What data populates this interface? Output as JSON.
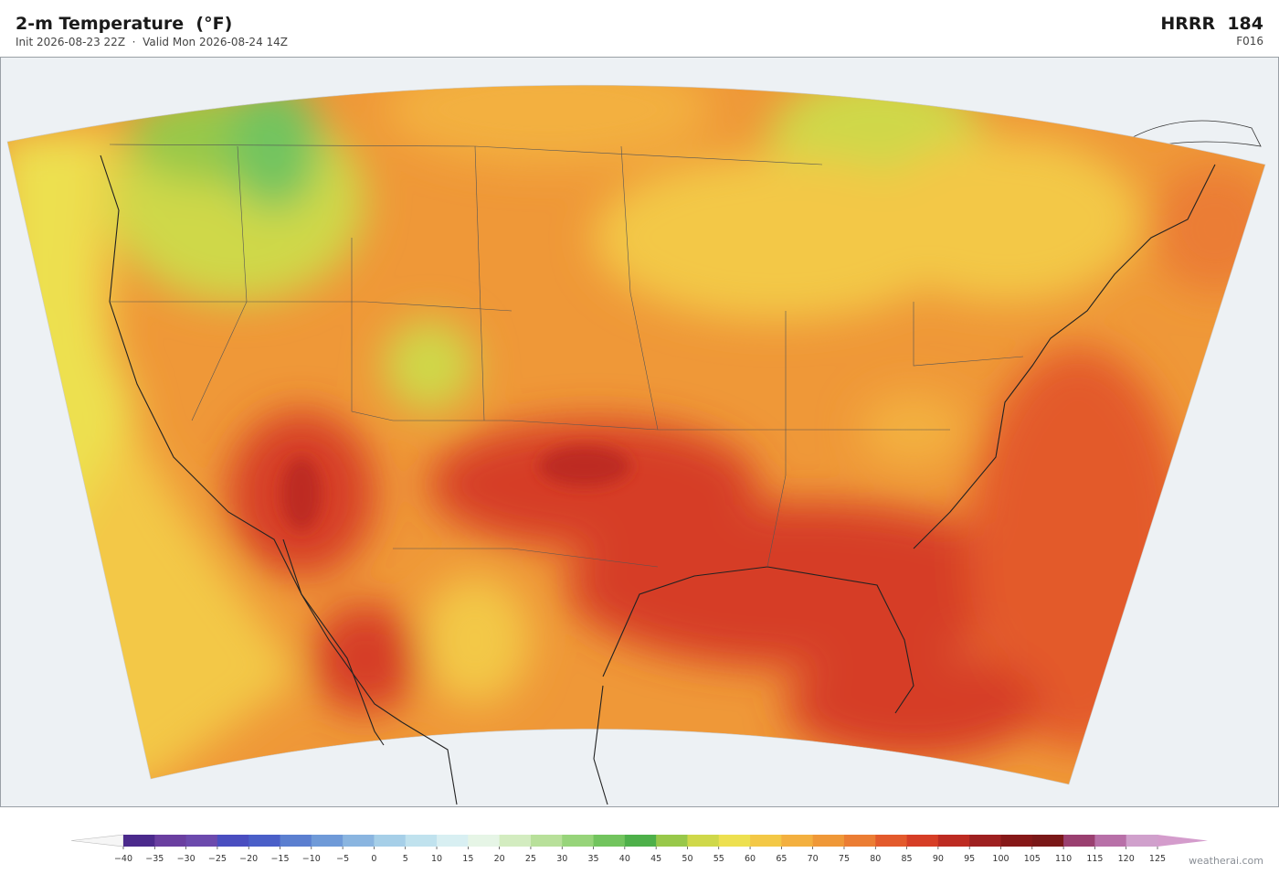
{
  "header": {
    "title": "2-m Temperature  (°F)",
    "subtitle": "Init 2026-08-23 22Z  ·  Valid Mon 2026-08-24 14Z",
    "model": "HRRR  184",
    "forecast_hour": "F016"
  },
  "colorbar": {
    "ticks": [
      {
        "value": -40,
        "label": "−40"
      },
      {
        "value": -35,
        "label": "−35"
      },
      {
        "value": -30,
        "label": "−30"
      },
      {
        "value": -25,
        "label": "−25"
      },
      {
        "value": -20,
        "label": "−20"
      },
      {
        "value": -15,
        "label": "−15"
      },
      {
        "value": -10,
        "label": "−10"
      },
      {
        "value": -5,
        "label": "−5"
      },
      0,
      5,
      10,
      15,
      20,
      25,
      30,
      35,
      40,
      45,
      50,
      55,
      60,
      65,
      70,
      75,
      80,
      85,
      90,
      95,
      100,
      105,
      110,
      115,
      120,
      125
    ],
    "colors": [
      "#4b2a8c",
      "#6a3fa0",
      "#6c4aad",
      "#4a4ec0",
      "#4a5fc8",
      "#5b7fd0",
      "#6f9ad8",
      "#8ab5e0",
      "#a6cfe8",
      "#c0e2ee",
      "#d8eff2",
      "#e6f5e6",
      "#d3ecc0",
      "#b8e09a",
      "#97d47a",
      "#72c45e",
      "#4eb04a",
      "#98c84a",
      "#cfd84a",
      "#ede050",
      "#f3c846",
      "#f3b040",
      "#ef9838",
      "#eb7d34",
      "#e35a2c",
      "#d63e26",
      "#bd2b22",
      "#9e2020",
      "#861818",
      "#7a1818",
      "#9a4070",
      "#b870a8",
      "#d0a0cc"
    ],
    "under_color": "#f6f6f6",
    "over_color": "#d49ccc"
  },
  "footer": {
    "credit": "weatherai.com"
  }
}
